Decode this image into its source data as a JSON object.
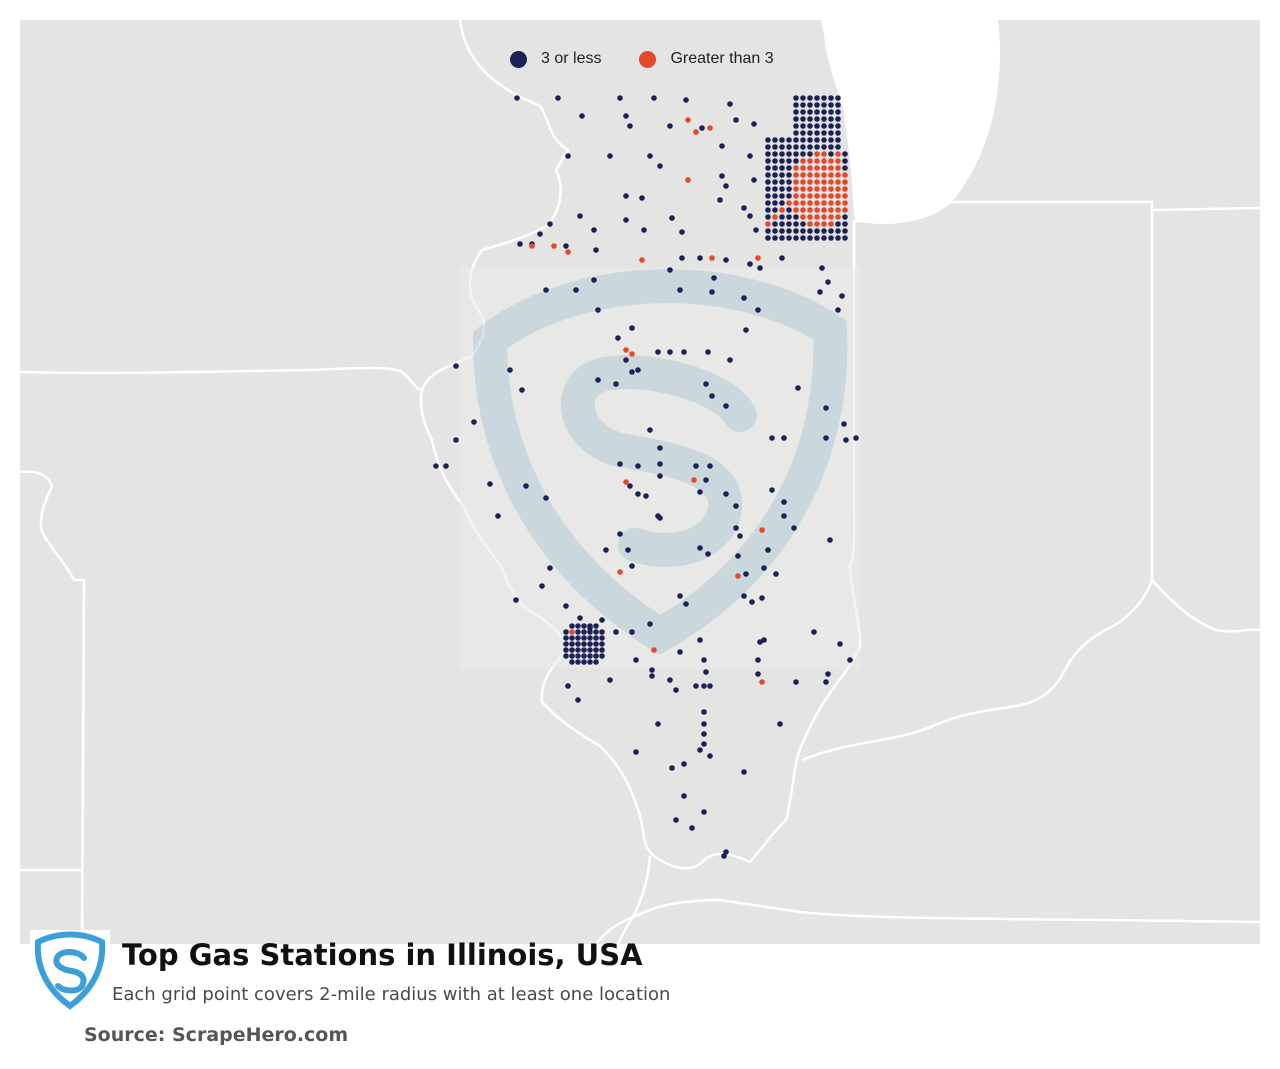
{
  "legend": {
    "items": [
      {
        "label": "3 or less",
        "color": "#1c2257"
      },
      {
        "label": "Greater than 3",
        "color": "#e5482a"
      }
    ]
  },
  "title": "Top Gas Stations in Illinois, USA",
  "subtitle": "Each grid point covers 2-mile radius with at least one location",
  "source": "Source: ScrapeHero.com",
  "map": {
    "region": "Illinois",
    "background_color": "#e4e4e2",
    "water_color": "#ffffff",
    "border_color": "#ffffff",
    "watermark_color": "#c9d9e2",
    "logo_color": "#3d9fd8"
  }
}
